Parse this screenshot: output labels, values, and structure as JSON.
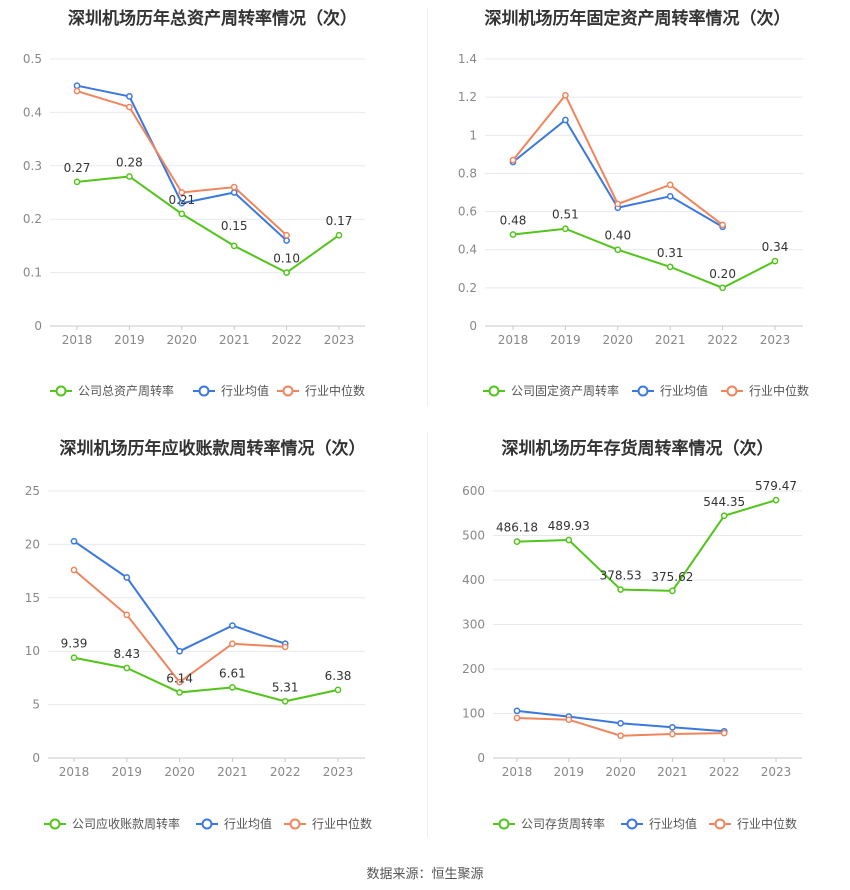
{
  "source_text": "数据来源：恒生聚源",
  "legend_colors": {
    "company": "#52c41a",
    "avg": "#3a78e0",
    "median": "#f0845c"
  },
  "chart_data": [
    {
      "type": "line",
      "title": "深圳机场历年总资产周转率情况（次）",
      "categories": [
        "2018",
        "2019",
        "2020",
        "2021",
        "2022",
        "2023"
      ],
      "ylim": [
        0,
        0.5
      ],
      "yticks": [
        "0",
        "0.1",
        "0.2",
        "0.3",
        "0.4",
        "0.5"
      ],
      "series": [
        {
          "name": "公司总资产周转率",
          "values": [
            0.27,
            0.28,
            0.21,
            0.15,
            0.1,
            0.17
          ],
          "labels": [
            "0.27",
            "0.28",
            "0.21",
            "0.15",
            "0.10",
            "0.17"
          ]
        },
        {
          "name": "行业均值",
          "values": [
            0.45,
            0.43,
            0.23,
            0.25,
            0.16,
            null
          ]
        },
        {
          "name": "行业中位数",
          "values": [
            0.44,
            0.41,
            0.25,
            0.26,
            0.17,
            null
          ]
        }
      ]
    },
    {
      "type": "line",
      "title": "深圳机场历年固定资产周转率情况（次）",
      "categories": [
        "2018",
        "2019",
        "2020",
        "2021",
        "2022",
        "2023"
      ],
      "ylim": [
        0,
        1.4
      ],
      "yticks": [
        "0",
        "0.2",
        "0.4",
        "0.6",
        "0.8",
        "1",
        "1.2",
        "1.4"
      ],
      "series": [
        {
          "name": "公司固定资产周转率",
          "values": [
            0.48,
            0.51,
            0.4,
            0.31,
            0.2,
            0.34
          ],
          "labels": [
            "0.48",
            "0.51",
            "0.40",
            "0.31",
            "0.20",
            "0.34"
          ]
        },
        {
          "name": "行业均值",
          "values": [
            0.86,
            1.08,
            0.62,
            0.68,
            0.52,
            null
          ]
        },
        {
          "name": "行业中位数",
          "values": [
            0.87,
            1.21,
            0.64,
            0.74,
            0.53,
            null
          ]
        }
      ]
    },
    {
      "type": "line",
      "title": "深圳机场历年应收账款周转率情况（次）",
      "categories": [
        "2018",
        "2019",
        "2020",
        "2021",
        "2022",
        "2023"
      ],
      "ylim": [
        0,
        25
      ],
      "yticks": [
        "0",
        "5",
        "10",
        "15",
        "20",
        "25"
      ],
      "series": [
        {
          "name": "公司应收账款周转率",
          "values": [
            9.39,
            8.43,
            6.14,
            6.61,
            5.31,
            6.38
          ],
          "labels": [
            "9.39",
            "8.43",
            "6.14",
            "6.61",
            "5.31",
            "6.38"
          ]
        },
        {
          "name": "行业均值",
          "values": [
            20.3,
            16.9,
            10.0,
            12.4,
            10.7,
            null
          ]
        },
        {
          "name": "行业中位数",
          "values": [
            17.6,
            13.4,
            7.1,
            10.7,
            10.4,
            null
          ]
        }
      ]
    },
    {
      "type": "line",
      "title": "深圳机场历年存货周转率情况（次）",
      "categories": [
        "2018",
        "2019",
        "2020",
        "2021",
        "2022",
        "2023"
      ],
      "ylim": [
        0,
        600
      ],
      "yticks": [
        "0",
        "100",
        "200",
        "300",
        "400",
        "500",
        "600"
      ],
      "series": [
        {
          "name": "公司存货周转率",
          "values": [
            486.18,
            489.93,
            378.53,
            375.62,
            544.35,
            579.47
          ],
          "labels": [
            "486.18",
            "489.93",
            "378.53",
            "375.62",
            "544.35",
            "579.47"
          ]
        },
        {
          "name": "行业均值",
          "values": [
            106,
            93,
            78,
            69,
            60,
            null
          ]
        },
        {
          "name": "行业中位数",
          "values": [
            90,
            86,
            50,
            54,
            56,
            null
          ]
        }
      ]
    }
  ]
}
